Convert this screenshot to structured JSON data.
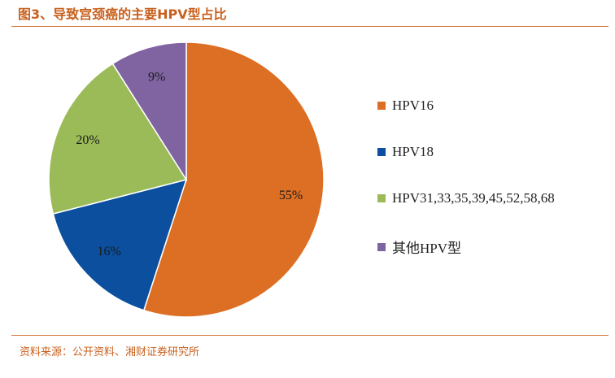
{
  "header": {
    "title": "图3、导致宫颈癌的主要HPV型占比"
  },
  "footer": {
    "source": "资料来源：公开资料、湘财证券研究所"
  },
  "chart_data": {
    "type": "pie",
    "title": "图3、导致宫颈癌的主要HPV型占比",
    "legend_position": "right",
    "slices": [
      {
        "name": "HPV16",
        "value": 55,
        "label": "55%",
        "color": "#dd6f24"
      },
      {
        "name": "HPV18",
        "value": 16,
        "label": "16%",
        "color": "#0b4f9e"
      },
      {
        "name": "HPV31,33,35,39,45,52,58,68",
        "value": 20,
        "label": "20%",
        "color": "#9bbb59"
      },
      {
        "name": "其他HPV型",
        "value": 9,
        "label": "9%",
        "color": "#8064a2"
      }
    ]
  }
}
